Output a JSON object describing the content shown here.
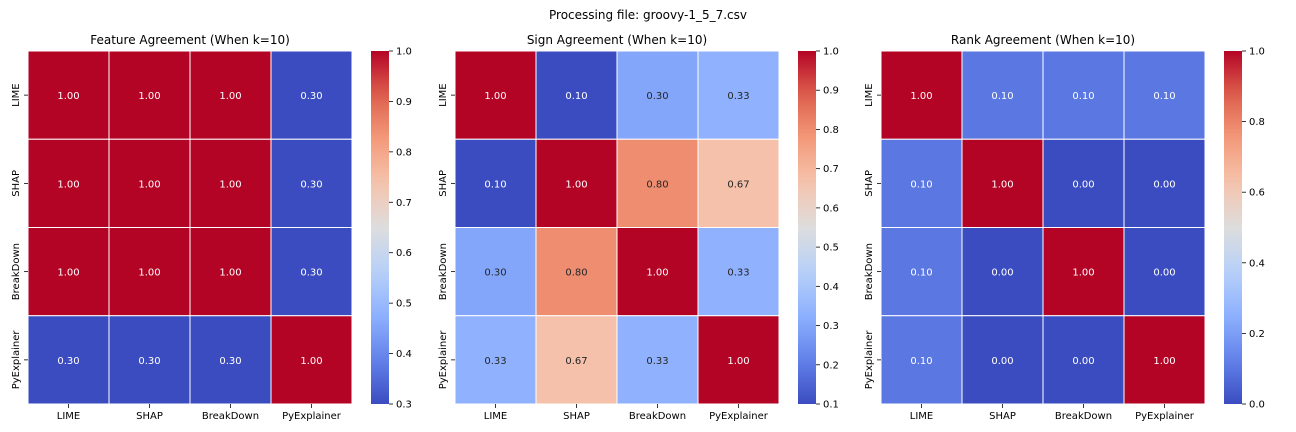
{
  "figure": {
    "suptitle": "Processing file: groovy-1_5_7.csv"
  },
  "chart_data": [
    {
      "type": "heatmap",
      "title": "Feature Agreement (When k=10)",
      "x_categories": [
        "LIME",
        "SHAP",
        "BreakDown",
        "PyExplainer"
      ],
      "y_categories": [
        "LIME",
        "SHAP",
        "BreakDown",
        "PyExplainer"
      ],
      "values": [
        [
          1.0,
          1.0,
          1.0,
          0.3
        ],
        [
          1.0,
          1.0,
          1.0,
          0.3
        ],
        [
          1.0,
          1.0,
          1.0,
          0.3
        ],
        [
          0.3,
          0.3,
          0.3,
          1.0
        ]
      ],
      "value_labels": [
        [
          "1.00",
          "1.00",
          "1.00",
          "0.30"
        ],
        [
          "1.00",
          "1.00",
          "1.00",
          "0.30"
        ],
        [
          "1.00",
          "1.00",
          "1.00",
          "0.30"
        ],
        [
          "0.30",
          "0.30",
          "0.30",
          "1.00"
        ]
      ],
      "colormap": "coolwarm",
      "vmin": 0.3,
      "vmax": 1.0,
      "colorbar_ticks": [
        0.3,
        0.4,
        0.5,
        0.6,
        0.7,
        0.8,
        0.9,
        1.0
      ],
      "colorbar_tick_labels": [
        "0.3",
        "0.4",
        "0.5",
        "0.6",
        "0.7",
        "0.8",
        "0.9",
        "1.0"
      ]
    },
    {
      "type": "heatmap",
      "title": "Sign Agreement (When k=10)",
      "x_categories": [
        "LIME",
        "SHAP",
        "BreakDown",
        "PyExplainer"
      ],
      "y_categories": [
        "LIME",
        "SHAP",
        "BreakDown",
        "PyExplainer"
      ],
      "values": [
        [
          1.0,
          0.1,
          0.3,
          0.33
        ],
        [
          0.1,
          1.0,
          0.8,
          0.67
        ],
        [
          0.3,
          0.8,
          1.0,
          0.33
        ],
        [
          0.33,
          0.67,
          0.33,
          1.0
        ]
      ],
      "value_labels": [
        [
          "1.00",
          "0.10",
          "0.30",
          "0.33"
        ],
        [
          "0.10",
          "1.00",
          "0.80",
          "0.67"
        ],
        [
          "0.30",
          "0.80",
          "1.00",
          "0.33"
        ],
        [
          "0.33",
          "0.67",
          "0.33",
          "1.00"
        ]
      ],
      "colormap": "coolwarm",
      "vmin": 0.1,
      "vmax": 1.0,
      "colorbar_ticks": [
        0.1,
        0.2,
        0.3,
        0.4,
        0.5,
        0.6,
        0.7,
        0.8,
        0.9,
        1.0
      ],
      "colorbar_tick_labels": [
        "0.1",
        "0.2",
        "0.3",
        "0.4",
        "0.5",
        "0.6",
        "0.7",
        "0.8",
        "0.9",
        "1.0"
      ]
    },
    {
      "type": "heatmap",
      "title": "Rank Agreement (When k=10)",
      "x_categories": [
        "LIME",
        "SHAP",
        "BreakDown",
        "PyExplainer"
      ],
      "y_categories": [
        "LIME",
        "SHAP",
        "BreakDown",
        "PyExplainer"
      ],
      "values": [
        [
          1.0,
          0.1,
          0.1,
          0.1
        ],
        [
          0.1,
          1.0,
          0.0,
          0.0
        ],
        [
          0.1,
          0.0,
          1.0,
          0.0
        ],
        [
          0.1,
          0.0,
          0.0,
          1.0
        ]
      ],
      "value_labels": [
        [
          "1.00",
          "0.10",
          "0.10",
          "0.10"
        ],
        [
          "0.10",
          "1.00",
          "0.00",
          "0.00"
        ],
        [
          "0.10",
          "0.00",
          "1.00",
          "0.00"
        ],
        [
          "0.10",
          "0.00",
          "0.00",
          "1.00"
        ]
      ],
      "colormap": "coolwarm",
      "vmin": 0.0,
      "vmax": 1.0,
      "colorbar_ticks": [
        0.0,
        0.2,
        0.4,
        0.6,
        0.8,
        1.0
      ],
      "colorbar_tick_labels": [
        "0.0",
        "0.2",
        "0.4",
        "0.6",
        "0.8",
        "1.0"
      ]
    }
  ]
}
